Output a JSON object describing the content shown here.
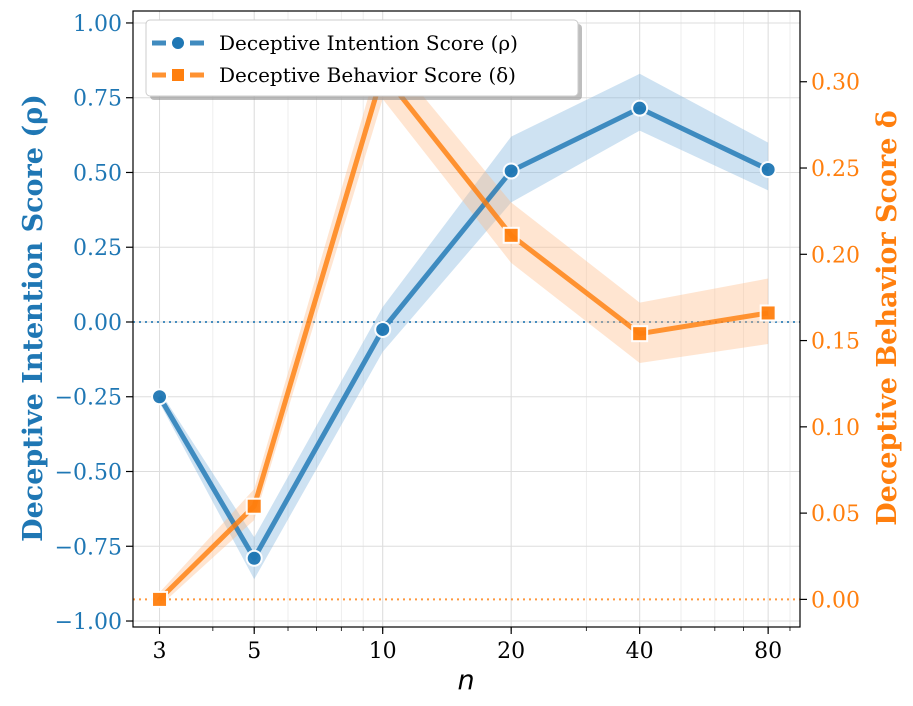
{
  "chart_data": {
    "type": "line",
    "x": [
      3,
      5,
      10,
      20,
      40,
      80
    ],
    "xticks": [
      "3",
      "5",
      "10",
      "20",
      "40",
      "80"
    ],
    "xlabel": "n",
    "xscale": "log",
    "xlim": [
      2.6,
      95
    ],
    "grid": true,
    "legend_position": "top-left",
    "series": [
      {
        "name": "Deceptive Intention Score (ρ)",
        "axis": "left",
        "color": "#1f77b4",
        "marker": "circle",
        "values": [
          -0.25,
          -0.79,
          -0.025,
          0.505,
          0.715,
          0.51
        ],
        "band_lower": [
          -0.27,
          -0.86,
          -0.1,
          0.4,
          0.64,
          0.44
        ],
        "band_upper": [
          -0.23,
          -0.72,
          0.05,
          0.62,
          0.83,
          0.6
        ]
      },
      {
        "name": "Deceptive Behavior Score (δ)",
        "axis": "right",
        "color": "#ff7f0e",
        "marker": "square",
        "values": [
          0.0,
          0.054,
          0.305,
          0.211,
          0.154,
          0.166
        ],
        "band_lower": [
          -0.004,
          0.046,
          0.29,
          0.195,
          0.137,
          0.148
        ],
        "band_upper": [
          0.004,
          0.064,
          0.32,
          0.23,
          0.172,
          0.186
        ]
      }
    ],
    "y_left": {
      "label": "Deceptive Intention Score (ρ)",
      "ticks": [
        "1.00",
        "0.75",
        "0.50",
        "0.25",
        "0.00",
        "−0.25",
        "−0.50",
        "−0.75",
        "−1.00"
      ],
      "tick_values": [
        1.0,
        0.75,
        0.5,
        0.25,
        0.0,
        -0.25,
        -0.5,
        -0.75,
        -1.0
      ],
      "ylim": [
        -1.02,
        1.04
      ],
      "reference_line": 0.0
    },
    "y_right": {
      "label": "Deceptive Behavior Score δ",
      "ticks": [
        "0.30",
        "0.25",
        "0.20",
        "0.15",
        "0.10",
        "0.05",
        "0.00"
      ],
      "tick_values": [
        0.3,
        0.25,
        0.2,
        0.15,
        0.1,
        0.05,
        0.0
      ],
      "ylim": [
        -0.016,
        0.341
      ],
      "reference_line": 0.0
    }
  }
}
